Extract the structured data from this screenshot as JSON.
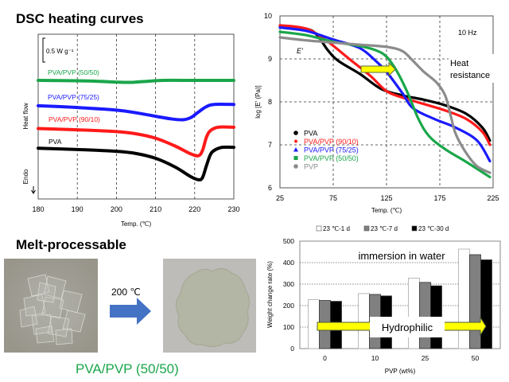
{
  "titles": {
    "dsc": "DSC heating curves",
    "melt": "Melt-processable"
  },
  "photos": {
    "before_alt": "PVA/PVP film pieces before heating",
    "after_alt": "PVA/PVP melted film after heating",
    "arrow_label": "200 ℃",
    "caption": "PVA/PVP (50/50)"
  },
  "colors": {
    "pva": "#000000",
    "pva_pvp_90_10": "#ff1a1a",
    "pva_pvp_75_25": "#1a1aff",
    "pva_pvp_50_50": "#1aa64a",
    "pvp": "#8c8c8c",
    "arrow_yellow": "#ffff00",
    "arrow_blue": "#4472c4"
  },
  "chart_data": [
    {
      "id": "dsc",
      "type": "line",
      "title": "DSC heating curves",
      "xlabel": "Temp. (℃)",
      "ylabel": "Heat flow",
      "endo_label": "Endo",
      "scale_bar_label": "0.5 W g⁻¹",
      "xlim": [
        180,
        230
      ],
      "xticks": [
        "180",
        "190",
        "200",
        "210",
        "220",
        "230"
      ],
      "grid": "vertical dashed",
      "note": "y values are relative heat flow offsets in W/g (curves vertically shifted)",
      "ylim": [
        -2.6,
        0.6
      ],
      "series": [
        {
          "name": "PVA/PVP (50/50)",
          "color": "#1aa64a",
          "x": [
            180,
            190,
            195,
            200,
            204,
            208,
            212,
            220,
            230
          ],
          "y": [
            0,
            -0.01,
            -0.02,
            -0.04,
            -0.045,
            -0.02,
            0,
            0,
            0
          ]
        },
        {
          "name": "PVA/PVP (75/25)",
          "color": "#1a1aff",
          "x": [
            180,
            190,
            200,
            205,
            210,
            214,
            217,
            219,
            221,
            223,
            225,
            230
          ],
          "y": [
            -0.58,
            -0.62,
            -0.68,
            -0.74,
            -0.82,
            -0.88,
            -0.9,
            -0.85,
            -0.72,
            -0.6,
            -0.55,
            -0.55
          ]
        },
        {
          "name": "PVA/PVP (90/10)",
          "color": "#ff1a1a",
          "x": [
            180,
            190,
            200,
            205,
            210,
            215,
            219,
            221,
            222,
            223,
            224,
            226,
            230
          ],
          "y": [
            -1.1,
            -1.13,
            -1.17,
            -1.22,
            -1.32,
            -1.5,
            -1.68,
            -1.72,
            -1.6,
            -1.3,
            -1.15,
            -1.07,
            -1.07
          ]
        },
        {
          "name": "PVA",
          "color": "#000000",
          "x": [
            180,
            190,
            200,
            205,
            210,
            215,
            219,
            221,
            222,
            223,
            224,
            225,
            227,
            230
          ],
          "y": [
            -1.55,
            -1.58,
            -1.62,
            -1.67,
            -1.78,
            -1.98,
            -2.2,
            -2.27,
            -2.22,
            -1.95,
            -1.7,
            -1.6,
            -1.53,
            -1.53
          ]
        }
      ],
      "series_labels": [
        "PVA/PVP (50/50)",
        "PVA/PVP (75/25)",
        "PVA/PVP (90/10)",
        "PVA"
      ]
    },
    {
      "id": "dma",
      "type": "scatter",
      "xlabel": "Temp. (℃)",
      "ylabel": "log [E' (Pa)]",
      "xlim": [
        25,
        225
      ],
      "ylim": [
        6,
        10
      ],
      "xticks": [
        "25",
        "75",
        "125",
        "175",
        "225"
      ],
      "yticks": [
        "6",
        "7",
        "8",
        "9",
        "10"
      ],
      "grid": "dashed",
      "legend": "bottom-left",
      "annotations": {
        "frequency": "10 Hz",
        "modulus_label": "E'",
        "heat_resistance": [
          "Heat",
          "resistance"
        ]
      },
      "series": [
        {
          "name": "PVA",
          "color": "#000000",
          "marker": "circle",
          "x": [
            25,
            50,
            60,
            70,
            80,
            100,
            120,
            140,
            160,
            180,
            200,
            215,
            222
          ],
          "y": [
            9.77,
            9.7,
            9.55,
            9.2,
            8.95,
            8.65,
            8.3,
            8.15,
            8.05,
            7.92,
            7.72,
            7.4,
            7.1
          ]
        },
        {
          "name": "PVA/PVP (90/10)",
          "color": "#ff1a1a",
          "marker": "diamond",
          "x": [
            25,
            50,
            70,
            90,
            110,
            125,
            140,
            160,
            180,
            200,
            215,
            222
          ],
          "y": [
            9.78,
            9.7,
            9.4,
            9.0,
            8.6,
            8.25,
            8.1,
            7.95,
            7.8,
            7.6,
            7.3,
            7.0
          ]
        },
        {
          "name": "PVA/PVP (75/25)",
          "color": "#1a1aff",
          "marker": "triangle",
          "x": [
            25,
            50,
            75,
            100,
            115,
            125,
            140,
            150,
            170,
            190,
            210,
            222
          ],
          "y": [
            9.73,
            9.65,
            9.45,
            9.25,
            8.95,
            8.7,
            8.2,
            7.85,
            7.6,
            7.4,
            7.1,
            6.62
          ]
        },
        {
          "name": "PVA/PVP (50/50)",
          "color": "#1aa64a",
          "marker": "square",
          "x": [
            25,
            50,
            75,
            100,
            115,
            125,
            135,
            145,
            155,
            165,
            180,
            200,
            222
          ],
          "y": [
            9.63,
            9.55,
            9.4,
            9.3,
            9.2,
            9.05,
            8.7,
            8.2,
            7.6,
            7.2,
            6.9,
            6.6,
            6.25
          ]
        },
        {
          "name": "PVP",
          "color": "#8c8c8c",
          "marker": "circle",
          "x": [
            25,
            50,
            75,
            100,
            125,
            140,
            150,
            160,
            172,
            180,
            185,
            190,
            200,
            210,
            222
          ],
          "y": [
            9.5,
            9.43,
            9.38,
            9.33,
            9.28,
            9.18,
            8.95,
            8.7,
            8.45,
            8.15,
            7.7,
            7.25,
            6.8,
            6.5,
            6.35
          ]
        }
      ]
    },
    {
      "id": "water",
      "type": "bar",
      "xlabel": "PVP (wt%)",
      "ylabel": "Weight change rate (%)",
      "categories": [
        "0",
        "10",
        "25",
        "50"
      ],
      "ylim": [
        0,
        500
      ],
      "yticks": [
        "0",
        "100",
        "200",
        "300",
        "400",
        "500"
      ],
      "grid": "horizontal dotted",
      "legend": "top",
      "annotations": {
        "title_in_plot": "immersion in water",
        "arrow_label": "Hydrophilic"
      },
      "series": [
        {
          "name": "23 ℃-1 d",
          "color": "#ffffff",
          "values": [
            228,
            256,
            328,
            463
          ]
        },
        {
          "name": "23 ℃-7 d",
          "color": "#808080",
          "values": [
            224,
            252,
            308,
            437
          ]
        },
        {
          "name": "23 ℃-30 d",
          "color": "#000000",
          "values": [
            220,
            245,
            292,
            413
          ]
        }
      ]
    }
  ]
}
